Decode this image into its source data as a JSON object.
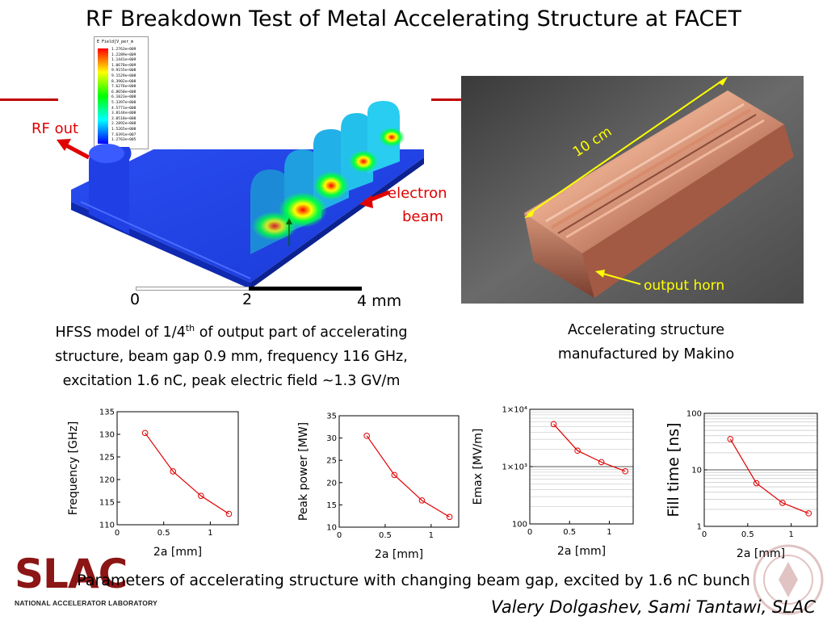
{
  "title": "RF Breakdown Test of Metal Accelerating Structure at FACET",
  "hfss": {
    "legend_title": "E Field[V_per_m",
    "legend_values": [
      "1.2763e+009",
      "1.2289e+009",
      "1.1441e+009",
      "1.0678e+009",
      "9.9155e+008",
      "9.1529e+008",
      "8.3902e+008",
      "7.6276e+008",
      "6.8650e+008",
      "6.1023e+008",
      "5.3397e+008",
      "4.5771e+008",
      "3.8144e+008",
      "3.0518e+008",
      "2.2892e+008",
      "1.5265e+008",
      "7.6391e+007",
      "1.2763e+005"
    ],
    "rf_out": "RF out",
    "electron": "electron",
    "beam": "beam",
    "scale_0": "0",
    "scale_2": "2",
    "scale_4": "4 mm",
    "caption_line1_a": "HFSS model of 1/4",
    "caption_sup": "th",
    "caption_line1_b": " of output part of accelerating",
    "caption_line2": "structure, beam gap 0.9 mm, frequency 116 GHz,",
    "caption_line3": "excitation 1.6 nC, peak electric field ~1.3 GV/m"
  },
  "photo": {
    "label_10cm": "10 cm",
    "label_horn": "output horn",
    "caption_line1": "Accelerating structure",
    "caption_line2": "manufactured by Makino"
  },
  "colors": {
    "accent_red": "#c00000",
    "annot_red": "#e00000",
    "annot_yellow": "#ffff00",
    "plot_line": "#e00000",
    "slac": "#8c1515"
  },
  "chart_data": [
    {
      "type": "line",
      "ylabel": "Frequency [GHz]",
      "xlabel": "2a [mm]",
      "xlim": [
        0,
        1.3
      ],
      "ylim": [
        110,
        135
      ],
      "xticks": [
        "0",
        "0.5",
        "1"
      ],
      "yticks": [
        "110",
        "115",
        "120",
        "125",
        "130",
        "135"
      ],
      "grid": false,
      "x": [
        0.3,
        0.6,
        0.9,
        1.2
      ],
      "y": [
        130.3,
        121.8,
        116.4,
        112.4
      ]
    },
    {
      "type": "line",
      "ylabel": "Peak power [MW]",
      "xlabel": "2a [mm]",
      "xlim": [
        0,
        1.3
      ],
      "ylim": [
        10,
        35
      ],
      "xticks": [
        "0",
        "0.5",
        "1"
      ],
      "yticks": [
        "10",
        "15",
        "20",
        "25",
        "30",
        "35"
      ],
      "grid": false,
      "x": [
        0.3,
        0.6,
        0.9,
        1.2
      ],
      "y": [
        30.5,
        21.7,
        16.0,
        12.3
      ]
    },
    {
      "type": "line",
      "ylabel": "Emax [MV/m]",
      "xlabel": "2a [mm]",
      "xlim": [
        0,
        1.3
      ],
      "ylim": [
        100,
        10000
      ],
      "log_y": true,
      "xticks": [
        "0",
        "0.5",
        "1"
      ],
      "yticks": [
        "100",
        "1×10³",
        "1×10⁴"
      ],
      "grid": true,
      "x": [
        0.3,
        0.6,
        0.9,
        1.2
      ],
      "y": [
        5500,
        1900,
        1200,
        830
      ]
    },
    {
      "type": "line",
      "ylabel": "Fill time [ns]",
      "xlabel": "2a [mm]",
      "xlim": [
        0,
        1.3
      ],
      "ylim": [
        1,
        100
      ],
      "log_y": true,
      "xticks": [
        "0",
        "0.5",
        "1"
      ],
      "yticks": [
        "1",
        "10",
        "100"
      ],
      "grid": true,
      "x": [
        0.3,
        0.6,
        0.9,
        1.2
      ],
      "y": [
        35,
        5.8,
        2.6,
        1.7
      ]
    }
  ],
  "bottom_caption": "Parameters of accelerating structure with changing beam gap,  excited by 1.6 nC bunch",
  "author": "Valery Dolgashev, Sami Tantawi, SLAC",
  "logo": {
    "slac": "SLAC",
    "subtitle": "NATIONAL ACCELERATOR LABORATORY"
  }
}
